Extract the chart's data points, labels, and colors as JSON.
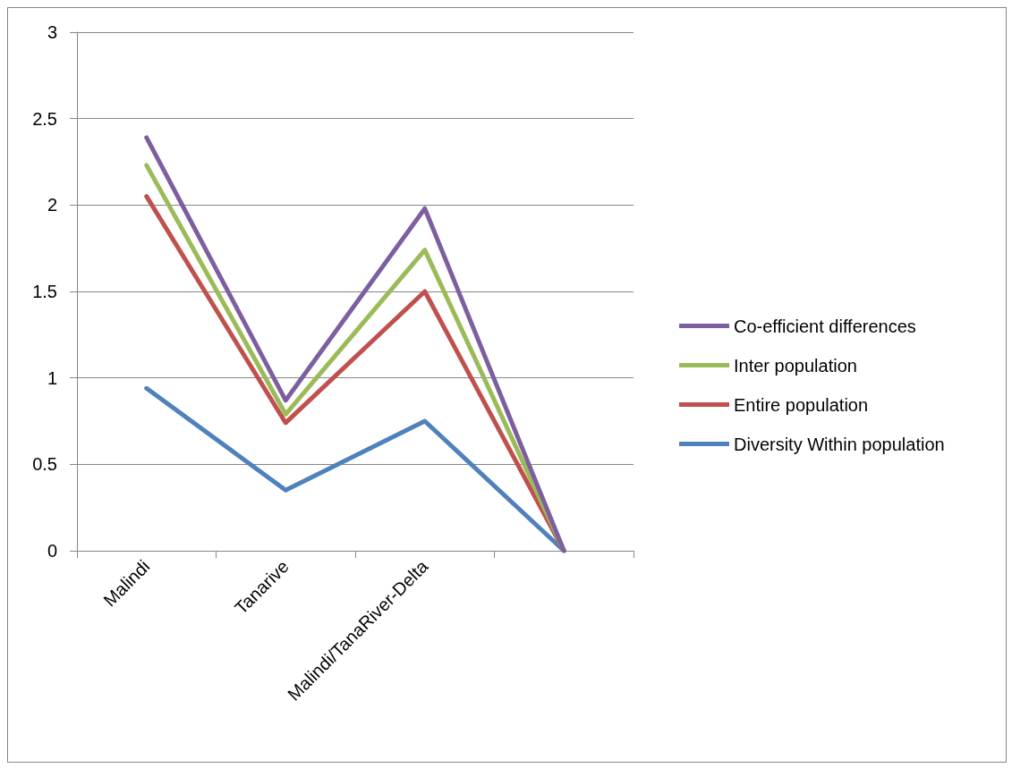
{
  "chart_data": {
    "type": "line",
    "categories": [
      "Malindi",
      "Tanarive",
      "Malindi/TanaRiver-Delta",
      null
    ],
    "series": [
      {
        "name": "Co-efficient differences",
        "color": "#7d5fa0",
        "values": [
          2.39,
          0.87,
          1.98,
          0
        ]
      },
      {
        "name": "Inter population",
        "color": "#9bbb59",
        "values": [
          2.23,
          0.79,
          1.74,
          0
        ]
      },
      {
        "name": "Entire population",
        "color": "#c0504d",
        "values": [
          2.05,
          0.74,
          1.5,
          0
        ]
      },
      {
        "name": "Diversity Within population",
        "color": "#4f81bd",
        "values": [
          0.94,
          0.35,
          0.75,
          0
        ]
      }
    ],
    "ylim": [
      0,
      3
    ],
    "yticks": [
      0,
      0.5,
      1,
      1.5,
      2,
      2.5,
      3
    ],
    "grid": "y",
    "legend": "right",
    "marker": "none",
    "line_style": "solid"
  }
}
